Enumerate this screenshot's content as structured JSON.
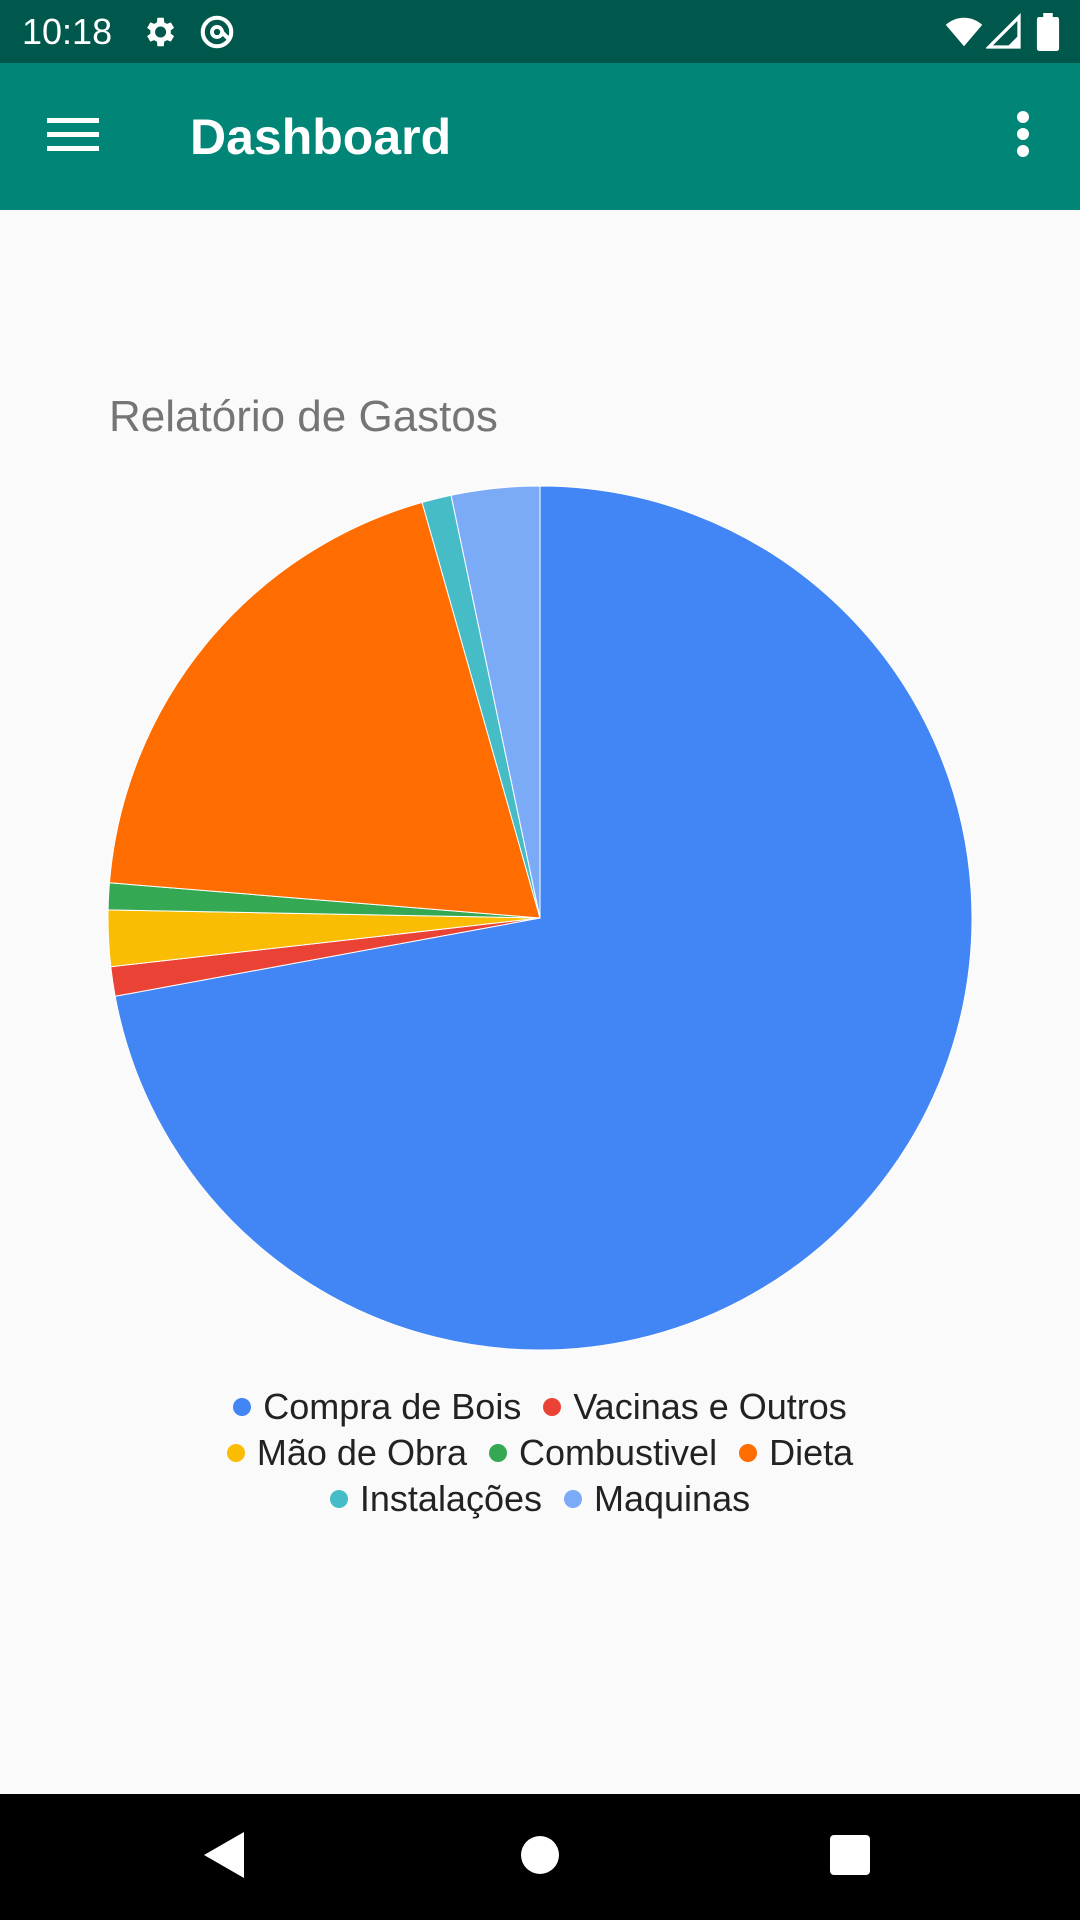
{
  "status_bar": {
    "time": "10:18",
    "icons": [
      "gear-icon",
      "at-sign-icon",
      "wifi-icon",
      "signal-icon",
      "battery-icon"
    ]
  },
  "app_bar": {
    "title": "Dashboard",
    "menu_icon": "hamburger-menu-icon",
    "overflow_icon": "more-vert-icon"
  },
  "chart_data": {
    "type": "pie",
    "title": "Relatório de Gastos",
    "categories": [
      "Compra de Bois",
      "Vacinas e Outros",
      "Mão de Obra",
      "Combustivel",
      "Dieta",
      "Instalações",
      "Maquinas"
    ],
    "values": [
      72.1,
      1.1,
      2.1,
      1.0,
      19.3,
      1.1,
      3.3
    ],
    "colors": [
      "#4285f4",
      "#ea4335",
      "#fbbc04",
      "#34a853",
      "#ff6d01",
      "#46bdc6",
      "#7baaf7"
    ],
    "legend_position": "bottom"
  },
  "nav_bar": {
    "icons": [
      "back-icon",
      "home-icon",
      "recents-icon"
    ]
  }
}
